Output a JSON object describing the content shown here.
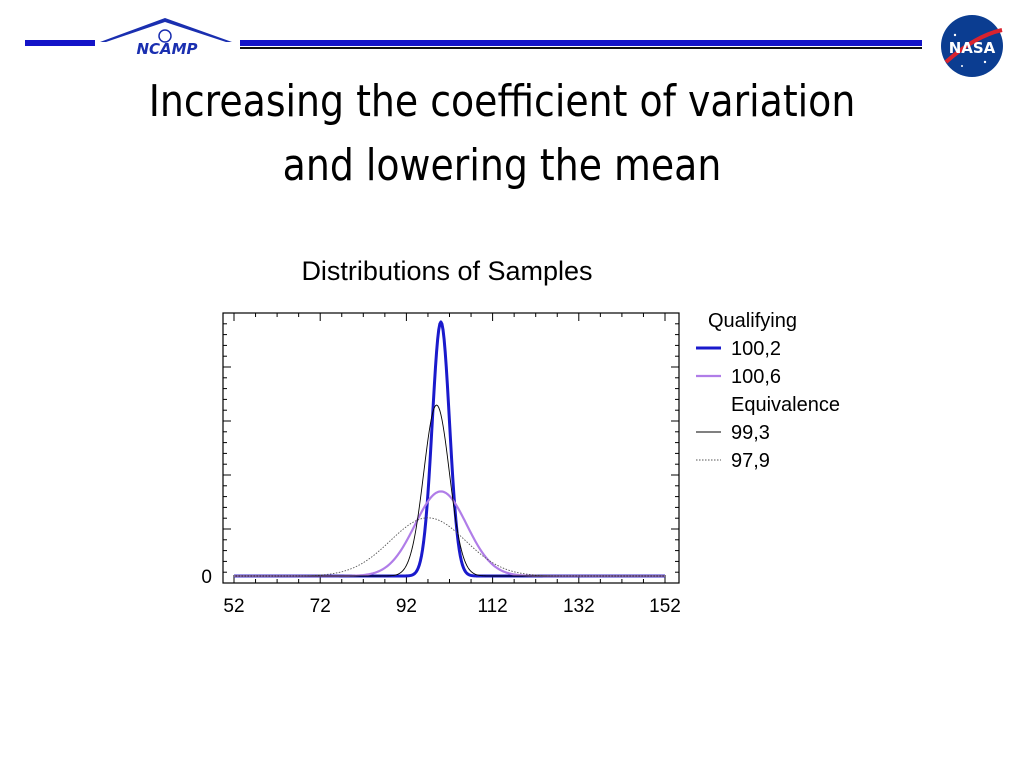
{
  "slide": {
    "title_line1": "Increasing the coefficient of variation",
    "title_line2": "and lowering the mean",
    "logos": {
      "left": {
        "name": "ncamp-logo",
        "text": "NCAMP",
        "color": "#1a2fb0"
      },
      "right": {
        "name": "nasa-logo",
        "text": "NASA",
        "color": "#0b3d91"
      }
    },
    "header_color": "#1414c8"
  },
  "chart_data": {
    "type": "line",
    "title": "Distributions of Samples",
    "xlabel": "",
    "ylabel": "",
    "xlim": [
      52,
      152
    ],
    "ylim": [
      0,
      1
    ],
    "x_ticks": [
      52,
      72,
      92,
      112,
      132,
      152
    ],
    "y_tick_labels": [
      {
        "value": 0,
        "label": "0"
      }
    ],
    "grid": false,
    "legend": {
      "placement": "right",
      "headings": [
        "Qualifying",
        "Equivalence"
      ]
    },
    "series": [
      {
        "name": "100,2",
        "group": "Qualifying",
        "mean": 100,
        "cv": 2,
        "color": "#1a1acc",
        "style": "solid",
        "weight": "thick",
        "peak": 1.0
      },
      {
        "name": "100,6",
        "group": "Qualifying",
        "mean": 100,
        "cv": 6,
        "color": "#b07de8",
        "style": "solid",
        "weight": "medium",
        "peak": 0.333
      },
      {
        "name": "99,3",
        "group": "Equivalence",
        "mean": 99,
        "cv": 3,
        "color": "#000000",
        "style": "solid",
        "weight": "thin",
        "peak": 0.673
      },
      {
        "name": "97,9",
        "group": "Equivalence",
        "mean": 97,
        "cv": 9,
        "color": "#555555",
        "style": "dotted",
        "weight": "thin",
        "peak": 0.229
      }
    ]
  }
}
